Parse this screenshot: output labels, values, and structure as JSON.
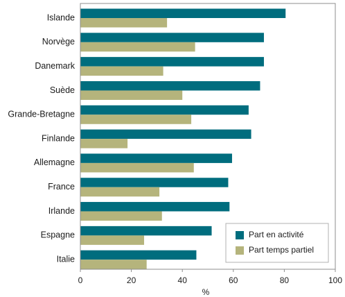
{
  "chart_data": {
    "type": "bar",
    "orientation": "horizontal",
    "categories": [
      "Islande",
      "Norvège",
      "Danemark",
      "Suède",
      "Grande-Bretagne",
      "Finlande",
      "Allemagne",
      "France",
      "Irlande",
      "Espagne",
      "Italie"
    ],
    "series": [
      {
        "name": "Part en activité",
        "color": "#006d7e",
        "values": [
          80.5,
          72,
          72,
          70.5,
          66,
          67,
          59.5,
          58,
          58.5,
          51.5,
          45.5
        ]
      },
      {
        "name": "Part temps partiel",
        "color": "#b5b47c",
        "values": [
          34,
          45,
          32.5,
          40,
          43.5,
          18.5,
          44.5,
          31,
          32,
          25,
          26
        ]
      }
    ],
    "xlabel": "%",
    "xlim": [
      0,
      100
    ],
    "xticks": [
      0,
      20,
      40,
      60,
      80,
      100
    ],
    "grid": false,
    "legend_position": "bottom-right"
  }
}
